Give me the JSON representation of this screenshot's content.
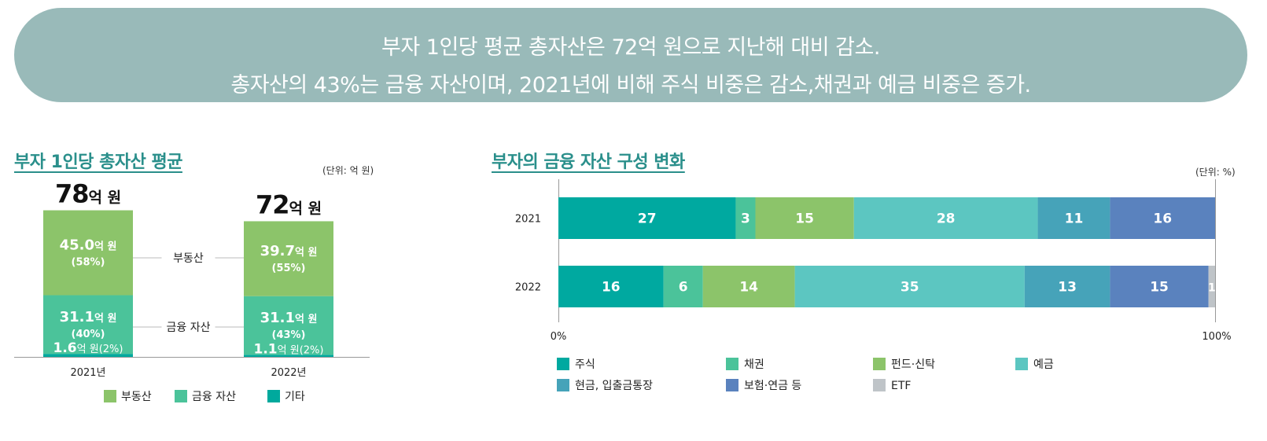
{
  "header": {
    "line1": "부자 1인당 평균 총자산은 72억 원으로 지난해 대비 감소.",
    "line2": "총자산의 43%는 금융 자산이며, 2021년에 비해 주식 비중은 감소,채권과 예금 비중은 증가."
  },
  "colors": {
    "banner": "#99bab9",
    "title": "#2a8f8b",
    "real_estate": "#8cc46a",
    "financial": "#4bc39a",
    "other": "#00a99d",
    "stock": "#00a9a0",
    "bond": "#4bc39a",
    "fund": "#8cc46a",
    "deposit": "#5cc6c1",
    "cash": "#46a3b9",
    "insurance": "#5a82be",
    "etf": "#bfc4c8"
  },
  "chart_data": [
    {
      "type": "bar",
      "stacked": true,
      "title": "부자 1인당 총자산 평균",
      "unit_label": "(단위: 억 원)",
      "categories": [
        "2021년",
        "2022년"
      ],
      "totals": [
        78,
        72
      ],
      "total_labels": [
        {
          "num": "78",
          "unit": "억 원"
        },
        {
          "num": "72",
          "unit": "억 원"
        }
      ],
      "series": [
        {
          "name": "기타",
          "key": "other",
          "values": [
            1.6,
            1.1
          ],
          "labels": [
            {
              "num": "1.6",
              "unit": "억 원",
              "pct": "(2%)"
            },
            {
              "num": "1.1",
              "unit": "억 원",
              "pct": "(2%)"
            }
          ]
        },
        {
          "name": "금융 자산",
          "key": "financial",
          "values": [
            31.1,
            31.1
          ],
          "labels": [
            {
              "num": "31.1",
              "unit": "억 원",
              "pct": "(40%)"
            },
            {
              "num": "31.1",
              "unit": "억 원",
              "pct": "(43%)"
            }
          ]
        },
        {
          "name": "부동산",
          "key": "real_estate",
          "values": [
            45.0,
            39.7
          ],
          "labels": [
            {
              "num": "45.0",
              "unit": "억 원",
              "pct": "(58%)"
            },
            {
              "num": "39.7",
              "unit": "억 원",
              "pct": "(55%)"
            }
          ]
        }
      ],
      "legend": [
        "부동산",
        "금융 자산",
        "기타"
      ],
      "legend_keys": [
        "real_estate",
        "financial",
        "other"
      ],
      "ylim": [
        0,
        100
      ]
    },
    {
      "type": "bar",
      "orientation": "horizontal",
      "stacked": true,
      "title": "부자의 금융 자산 구성 변화",
      "unit_label": "(단위: %)",
      "categories": [
        "2021",
        "2022"
      ],
      "series": [
        {
          "name": "주식",
          "key": "stock",
          "values": [
            27,
            16
          ]
        },
        {
          "name": "채권",
          "key": "bond",
          "values": [
            3,
            6
          ]
        },
        {
          "name": "펀드·신탁",
          "key": "fund",
          "values": [
            15,
            14
          ]
        },
        {
          "name": "예금",
          "key": "deposit",
          "values": [
            28,
            35
          ]
        },
        {
          "name": "현금, 입출금통장",
          "key": "cash",
          "values": [
            11,
            13
          ]
        },
        {
          "name": "보험·연금 등",
          "key": "insurance",
          "values": [
            16,
            15
          ]
        },
        {
          "name": "ETF",
          "key": "etf",
          "values": [
            0,
            1
          ]
        }
      ],
      "xlim": [
        0,
        100
      ],
      "x_ticks": [
        "0%",
        "100%"
      ],
      "legend_placement": "bottom"
    }
  ]
}
